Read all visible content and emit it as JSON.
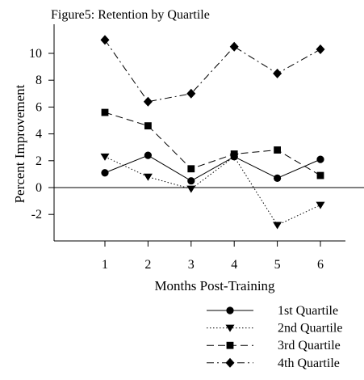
{
  "chart_data": {
    "type": "line",
    "title": "Figure5: Retention by Quartile",
    "xlabel": "Months Post-Training",
    "ylabel": "Percent Improvement",
    "x": [
      1,
      2,
      3,
      4,
      5,
      6
    ],
    "xlim": [
      0,
      7
    ],
    "ylim": [
      -4,
      11.5
    ],
    "yticks": [
      -2,
      0,
      2,
      4,
      6,
      8,
      10
    ],
    "yticklabels": [
      "-2",
      "0",
      "2",
      "4",
      "6",
      "8",
      "10"
    ],
    "xticklabels": [
      "1",
      "2",
      "3",
      "4",
      "5",
      "6"
    ],
    "zero_line": true,
    "grid": false,
    "legend_position": "bottom-right",
    "series": [
      {
        "name": "1st Quartile",
        "values": [
          1.1,
          2.4,
          0.5,
          2.3,
          0.7,
          2.1
        ],
        "marker": "circle",
        "dash": "solid"
      },
      {
        "name": "2nd Quartile",
        "values": [
          2.3,
          0.8,
          -0.1,
          2.3,
          -2.8,
          -1.3
        ],
        "marker": "triangle-down",
        "dash": "dotted"
      },
      {
        "name": "3rd Quartile",
        "values": [
          5.6,
          4.6,
          1.4,
          2.5,
          2.8,
          0.9
        ],
        "marker": "square",
        "dash": "dashed"
      },
      {
        "name": "4th Quartile",
        "values": [
          11.0,
          6.4,
          7.0,
          10.5,
          8.5,
          10.3
        ],
        "marker": "diamond",
        "dash": "dash-dot"
      }
    ]
  }
}
